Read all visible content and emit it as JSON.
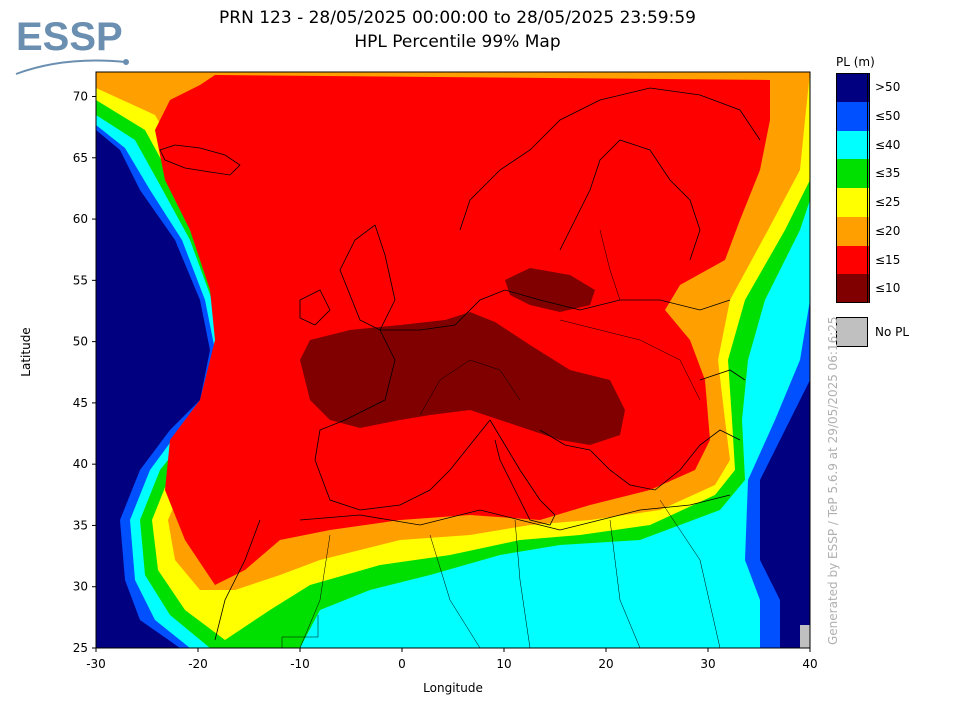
{
  "title_line1": "PRN 123 - 28/05/2025 00:00:00 to 28/05/2025 23:59:59",
  "title_line2": "HPL Percentile 99% Map",
  "logo_text": "ESSP",
  "map": {
    "xlabel": "Longitude",
    "ylabel": "Latitude",
    "xlim": [
      -30,
      40
    ],
    "ylim": [
      25,
      72
    ],
    "xticks": [
      "-30",
      "-20",
      "-10",
      "0",
      "10",
      "20",
      "30",
      "40"
    ],
    "yticks": [
      "25",
      "30",
      "35",
      "40",
      "45",
      "50",
      "55",
      "60",
      "65",
      "70"
    ]
  },
  "legend": {
    "title": "PL (m)",
    "items": [
      {
        "label": ">50",
        "color": "#000080"
      },
      {
        "label": "≤50",
        "color": "#0050ff"
      },
      {
        "label": "≤40",
        "color": "#00ffff"
      },
      {
        "label": "≤35",
        "color": "#00e000"
      },
      {
        "label": "≤25",
        "color": "#ffff00"
      },
      {
        "label": "≤20",
        "color": "#ffa000"
      },
      {
        "label": "≤15",
        "color": "#ff0000"
      },
      {
        "label": "≤10",
        "color": "#800000"
      }
    ],
    "nopl_label": "No PL",
    "nopl_color": "#c0c0c0"
  },
  "generated_text": "Generated by ESSP / TeP 5.6.9 at 29/05/2025 06:16:25"
}
